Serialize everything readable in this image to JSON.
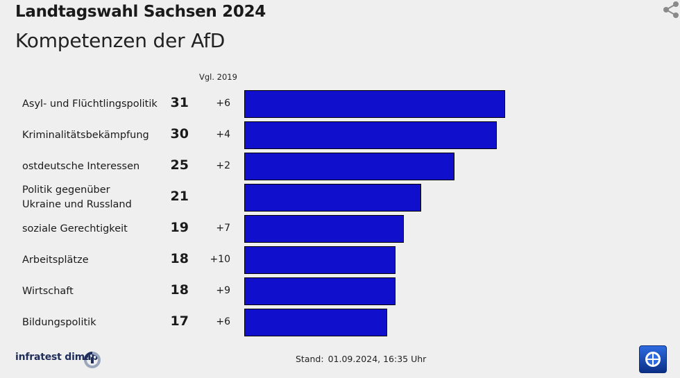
{
  "title": "Landtagswahl Sachsen 2024",
  "subtitle": "Kompetenzen der AfD",
  "column_header_change": "Vgl. 2019",
  "source": "infratest dimap",
  "stand_label": "Stand:",
  "stand_value": "01.09.2024, 16:35 Uhr",
  "icons": {
    "share": "share-icon",
    "source_logo": "infratest-logo-icon",
    "tagesschau": "tagesschau-app-icon"
  },
  "colors": {
    "bar": "#1010cc",
    "background": "#efefef"
  },
  "chart_data": {
    "type": "bar",
    "orientation": "horizontal",
    "title": "Landtagswahl Sachsen 2024",
    "subtitle": "Kompetenzen der AfD",
    "categories": [
      "Asyl- und Flüchtlingspolitik",
      "Kriminalitätsbekämpfung",
      "ostdeutsche Interessen",
      "Politik gegenüber\nUkraine und Russland",
      "soziale Gerechtigkeit",
      "Arbeitsplätze",
      "Wirtschaft",
      "Bildungspolitik"
    ],
    "values": [
      31,
      30,
      25,
      21,
      19,
      18,
      18,
      17
    ],
    "value_labels": [
      "31",
      "30",
      "25",
      "21",
      "19",
      "18",
      "18",
      "17"
    ],
    "change_vs_2019": [
      "+6",
      "+4",
      "+2",
      "",
      "+7",
      "+10",
      "+9",
      "+6"
    ],
    "grid": false,
    "legend": "none"
  }
}
